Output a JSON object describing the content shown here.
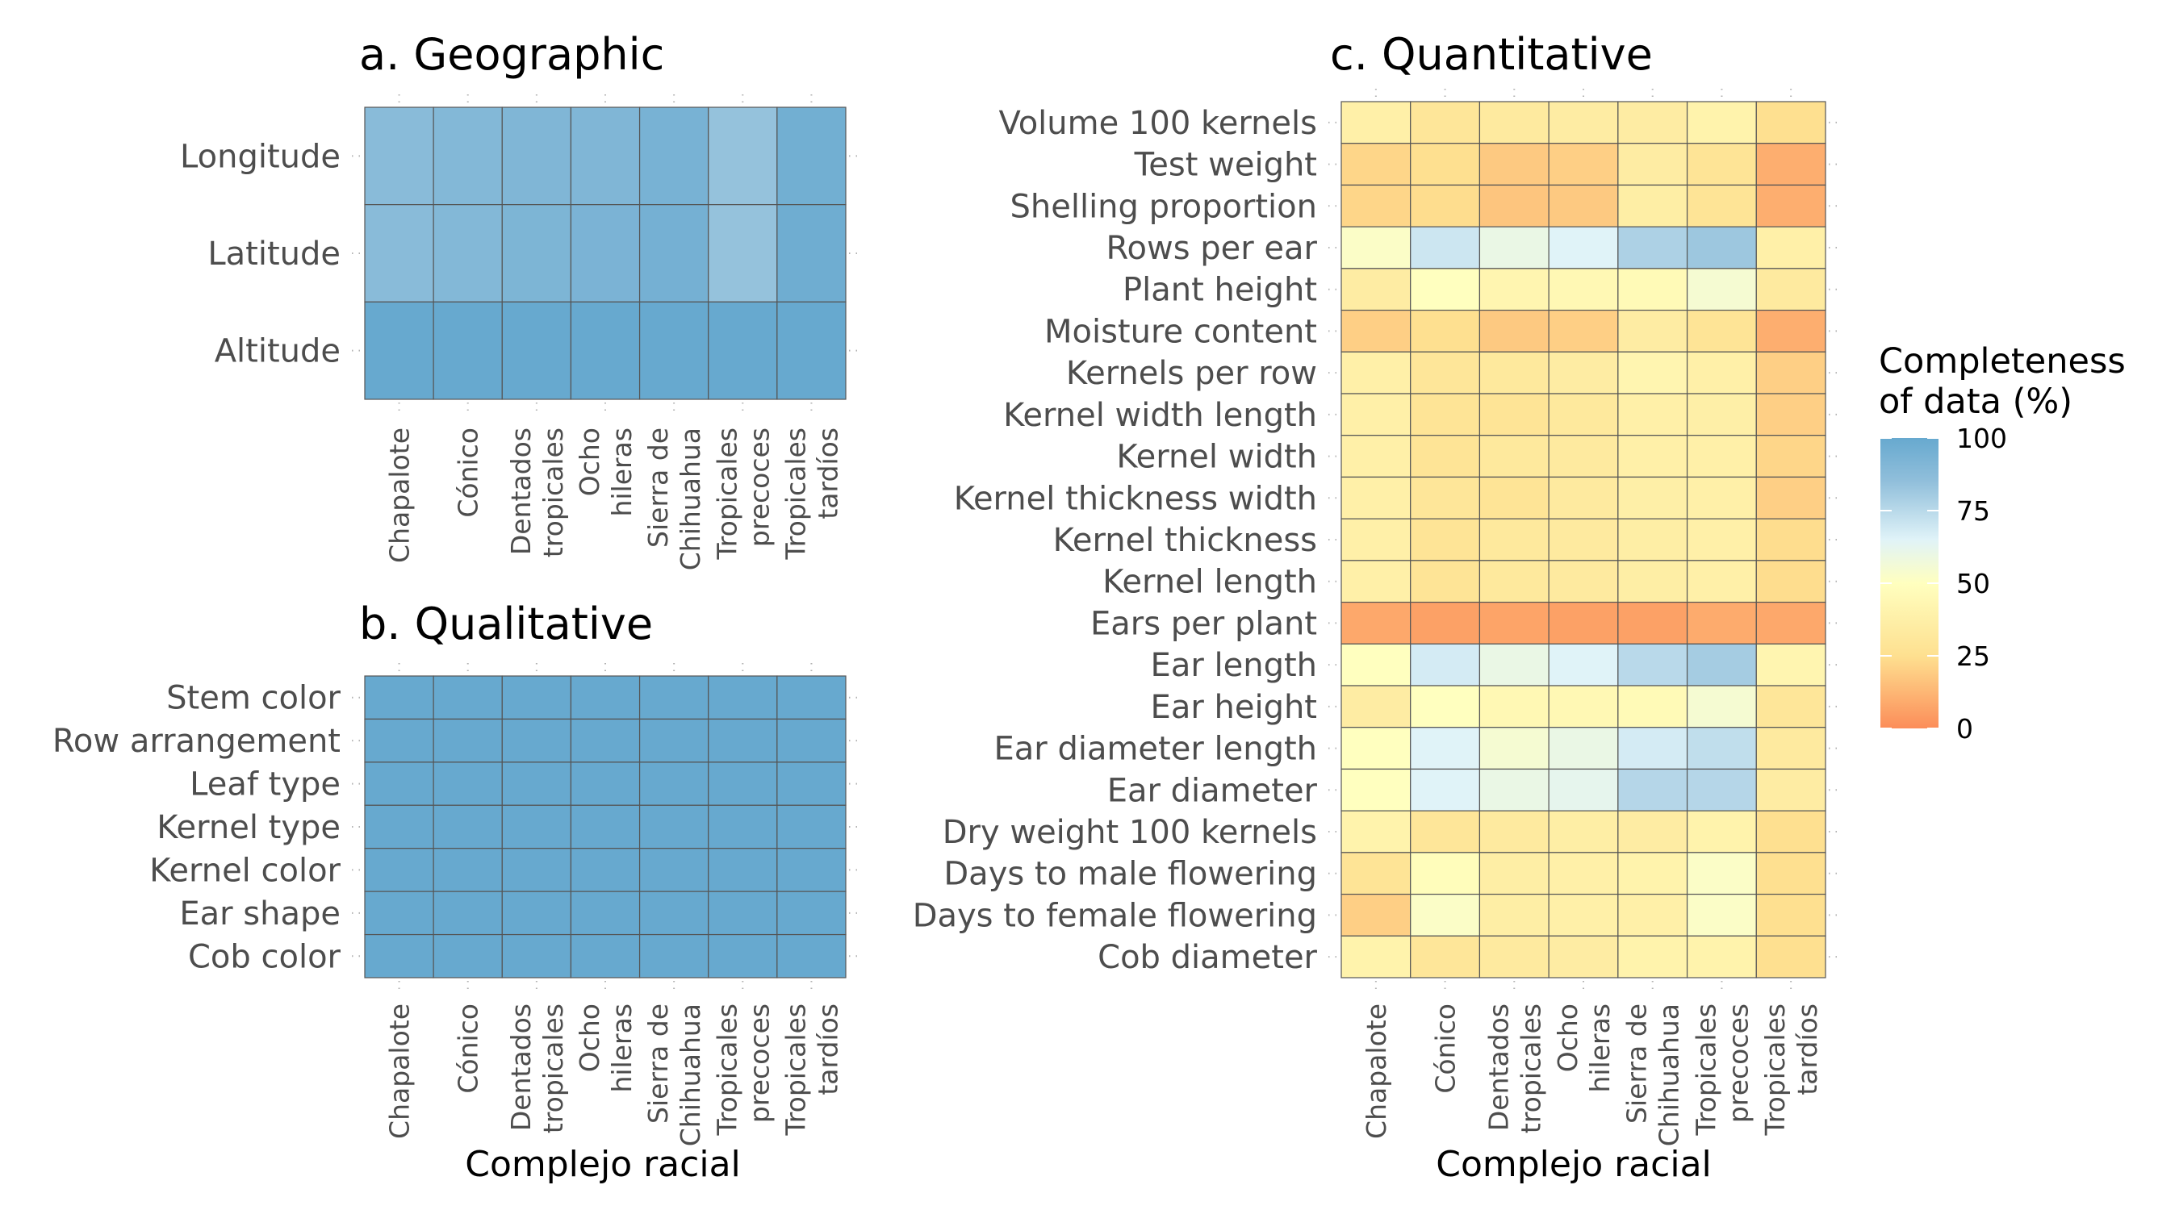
{
  "chart_data": [
    {
      "type": "heatmap",
      "id": "geographic",
      "title": "a. Geographic",
      "xlabel": "",
      "ylabel": "",
      "columns": [
        "Chapalote",
        "Cónico",
        "Dentados tropicales",
        "Ocho hileras",
        "Sierra de Chihuahua",
        "Tropicales precoces",
        "Tropicales tardíos"
      ],
      "rows": [
        "Longitude",
        "Latitude",
        "Altitude"
      ],
      "values": [
        [
          88,
          90,
          91,
          91,
          94,
          84,
          96
        ],
        [
          88,
          90,
          92,
          93,
          95,
          84,
          97
        ],
        [
          100,
          100,
          100,
          100,
          100,
          100,
          100
        ]
      ]
    },
    {
      "type": "heatmap",
      "id": "qualitative",
      "title": "b. Qualitative",
      "xlabel": "Complejo racial",
      "ylabel": "",
      "columns": [
        "Chapalote",
        "Cónico",
        "Dentados tropicales",
        "Ocho hileras",
        "Sierra de Chihuahua",
        "Tropicales precoces",
        "Tropicales tardíos"
      ],
      "rows": [
        "Stem color",
        "Row arrangement",
        "Leaf type",
        "Kernel type",
        "Kernel color",
        "Ear shape",
        "Cob color"
      ],
      "values": [
        [
          100,
          100,
          100,
          100,
          100,
          100,
          100
        ],
        [
          100,
          100,
          100,
          100,
          100,
          100,
          100
        ],
        [
          100,
          100,
          100,
          100,
          100,
          100,
          100
        ],
        [
          100,
          100,
          100,
          100,
          100,
          100,
          100
        ],
        [
          100,
          100,
          100,
          100,
          100,
          100,
          100
        ],
        [
          100,
          100,
          100,
          100,
          100,
          100,
          100
        ],
        [
          100,
          100,
          100,
          100,
          100,
          100,
          100
        ]
      ]
    },
    {
      "type": "heatmap",
      "id": "quantitative",
      "title": "c. Quantitative",
      "xlabel": "Complejo racial",
      "ylabel": "",
      "columns": [
        "Chapalote",
        "Cónico",
        "Dentados tropicales",
        "Ocho hileras",
        "Sierra de Chihuahua",
        "Tropicales precoces",
        "Tropicales tardíos"
      ],
      "rows": [
        "Volume 100 kernels",
        "Test weight",
        "Shelling proportion",
        "Rows per ear",
        "Plant height",
        "Moisture content",
        "Kernels per row",
        "Kernel width length",
        "Kernel width",
        "Kernel thickness width",
        "Kernel thickness",
        "Kernel length",
        "Ears per plant",
        "Ear length",
        "Ear height",
        "Ear diameter length",
        "Ear diameter",
        "Dry weight 100 kernels",
        "Days to male flowering",
        "Days to female flowering",
        "Cob diameter"
      ],
      "values": [
        [
          38,
          30,
          33,
          35,
          35,
          40,
          25
        ],
        [
          22,
          25,
          18,
          20,
          35,
          28,
          10
        ],
        [
          22,
          24,
          17,
          18,
          36,
          28,
          10
        ],
        [
          52,
          70,
          60,
          65,
          78,
          82,
          38
        ],
        [
          35,
          50,
          42,
          44,
          46,
          55,
          33
        ],
        [
          20,
          25,
          18,
          20,
          35,
          28,
          10
        ],
        [
          38,
          30,
          32,
          35,
          42,
          38,
          20
        ],
        [
          38,
          28,
          28,
          32,
          38,
          37,
          20
        ],
        [
          38,
          28,
          32,
          33,
          38,
          38,
          22
        ],
        [
          38,
          30,
          28,
          33,
          37,
          38,
          20
        ],
        [
          38,
          28,
          32,
          33,
          36,
          38,
          24
        ],
        [
          38,
          28,
          32,
          33,
          36,
          38,
          24
        ],
        [
          8,
          6,
          7,
          6,
          6,
          9,
          8
        ],
        [
          50,
          68,
          60,
          65,
          75,
          80,
          42
        ],
        [
          35,
          50,
          44,
          44,
          46,
          55,
          30
        ],
        [
          50,
          65,
          55,
          60,
          68,
          73,
          33
        ],
        [
          50,
          65,
          60,
          62,
          76,
          76,
          35
        ],
        [
          40,
          30,
          33,
          36,
          35,
          40,
          25
        ],
        [
          28,
          48,
          36,
          38,
          40,
          52,
          25
        ],
        [
          20,
          52,
          36,
          38,
          38,
          52,
          25
        ],
        [
          40,
          30,
          33,
          35,
          40,
          40,
          25
        ]
      ]
    }
  ],
  "legend": {
    "title_line1": "Completeness",
    "title_line2": "of data (%)",
    "ticks": [
      "100",
      "75",
      "50",
      "25",
      "0"
    ],
    "tick_values": [
      100,
      75,
      50,
      25,
      0
    ],
    "colors": [
      "#fc8d59",
      "#fee090",
      "#ffffbf",
      "#e0f3f8",
      "#91bfdb",
      "#67a9cf"
    ],
    "color_stops": [
      0,
      25,
      50,
      65,
      85,
      100
    ]
  }
}
